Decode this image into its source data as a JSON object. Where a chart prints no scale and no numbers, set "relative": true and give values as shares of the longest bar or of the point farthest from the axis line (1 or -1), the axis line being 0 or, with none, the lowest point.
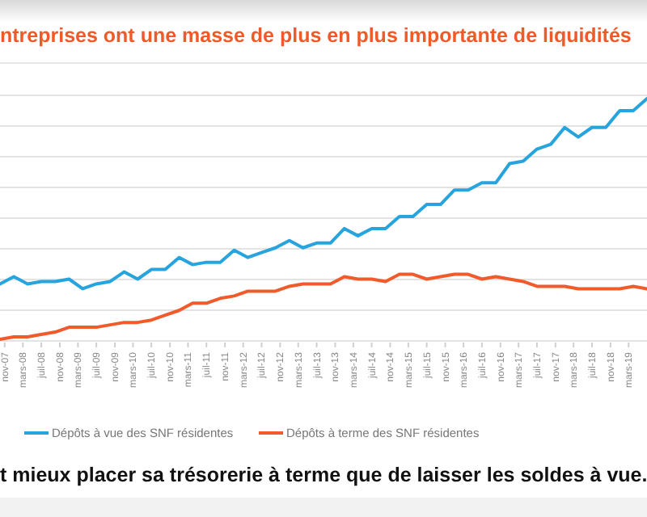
{
  "chart_data": {
    "type": "line",
    "title": "ntreprises ont une masse de plus en plus importante de liquidités",
    "relative": true,
    "grid": "y",
    "legend": "bottom",
    "marker": "none",
    "line_style": "solid",
    "x": [
      "2007-10",
      "2008-01",
      "2008-04",
      "2008-07",
      "2008-10",
      "2009-01",
      "2009-04",
      "2009-07",
      "2009-10",
      "2010-01",
      "2010-04",
      "2010-07",
      "2010-10",
      "2011-01",
      "2011-04",
      "2011-07",
      "2011-10",
      "2012-01",
      "2012-04",
      "2012-07",
      "2012-10",
      "2013-01",
      "2013-04",
      "2013-07",
      "2013-10",
      "2014-01",
      "2014-04",
      "2014-07",
      "2014-10",
      "2015-01",
      "2015-04",
      "2015-07",
      "2015-10",
      "2016-01",
      "2016-04",
      "2016-07",
      "2016-10",
      "2017-01",
      "2017-04",
      "2017-07",
      "2017-10",
      "2018-01",
      "2018-04",
      "2018-07",
      "2018-10",
      "2019-01",
      "2019-04",
      "2019-07"
    ],
    "xlim": [
      "2007-10",
      "2019-07"
    ],
    "xticks": [
      {
        "value": "2007-11",
        "label": "nov-07"
      },
      {
        "value": "2008-03",
        "label": "mars-08"
      },
      {
        "value": "2008-07",
        "label": "juil-08"
      },
      {
        "value": "2008-11",
        "label": "nov-08"
      },
      {
        "value": "2009-03",
        "label": "mars-09"
      },
      {
        "value": "2009-07",
        "label": "juil-09"
      },
      {
        "value": "2009-11",
        "label": "nov-09"
      },
      {
        "value": "2010-03",
        "label": "mars-10"
      },
      {
        "value": "2010-07",
        "label": "juil-10"
      },
      {
        "value": "2010-11",
        "label": "nov-10"
      },
      {
        "value": "2011-03",
        "label": "mars-11"
      },
      {
        "value": "2011-07",
        "label": "juil-11"
      },
      {
        "value": "2011-11",
        "label": "nov-11"
      },
      {
        "value": "2012-03",
        "label": "mars-12"
      },
      {
        "value": "2012-07",
        "label": "juil-12"
      },
      {
        "value": "2012-11",
        "label": "nov-12"
      },
      {
        "value": "2013-03",
        "label": "mars-13"
      },
      {
        "value": "2013-07",
        "label": "juil-13"
      },
      {
        "value": "2013-11",
        "label": "nov-13"
      },
      {
        "value": "2014-03",
        "label": "mars-14"
      },
      {
        "value": "2014-07",
        "label": "juil-14"
      },
      {
        "value": "2014-11",
        "label": "nov-14"
      },
      {
        "value": "2015-03",
        "label": "mars-15"
      },
      {
        "value": "2015-07",
        "label": "juil-15"
      },
      {
        "value": "2015-11",
        "label": "nov-15"
      },
      {
        "value": "2016-03",
        "label": "mars-16"
      },
      {
        "value": "2016-07",
        "label": "juil-16"
      },
      {
        "value": "2016-11",
        "label": "nov-16"
      },
      {
        "value": "2017-03",
        "label": "mars-17"
      },
      {
        "value": "2017-07",
        "label": "juil-17"
      },
      {
        "value": "2017-11",
        "label": "nov-17"
      },
      {
        "value": "2018-03",
        "label": "mars-18"
      },
      {
        "value": "2018-07",
        "label": "juil-18"
      },
      {
        "value": "2018-11",
        "label": "nov-18"
      },
      {
        "value": "2019-03",
        "label": "mars-19"
      }
    ],
    "series": [
      {
        "name": "Dépôts à vue des SNF résidentes",
        "color": "#27a4dd",
        "values": [
          0.23,
          0.26,
          0.23,
          0.24,
          0.24,
          0.25,
          0.21,
          0.23,
          0.24,
          0.28,
          0.25,
          0.29,
          0.29,
          0.34,
          0.31,
          0.32,
          0.32,
          0.37,
          0.34,
          0.36,
          0.38,
          0.41,
          0.38,
          0.4,
          0.4,
          0.46,
          0.43,
          0.46,
          0.46,
          0.51,
          0.51,
          0.56,
          0.56,
          0.62,
          0.62,
          0.65,
          0.65,
          0.73,
          0.74,
          0.79,
          0.81,
          0.88,
          0.84,
          0.88,
          0.88,
          0.95,
          0.95,
          1
        ]
      },
      {
        "name": "Dépôts à terme des SNF résidentes",
        "color": "#f15a2b",
        "values": [
          0,
          0.01,
          0.01,
          0.02,
          0.03,
          0.05,
          0.05,
          0.05,
          0.06,
          0.07,
          0.07,
          0.08,
          0.1,
          0.12,
          0.15,
          0.15,
          0.17,
          0.18,
          0.2,
          0.2,
          0.2,
          0.22,
          0.23,
          0.23,
          0.23,
          0.26,
          0.25,
          0.25,
          0.24,
          0.27,
          0.27,
          0.25,
          0.26,
          0.27,
          0.27,
          0.25,
          0.26,
          0.25,
          0.24,
          0.22,
          0.22,
          0.22,
          0.21,
          0.21,
          0.21,
          0.21,
          0.22,
          0.21
        ]
      }
    ],
    "annotations": [
      "t mieux placer sa trésorerie à terme que de laisser les soldes à vue."
    ]
  }
}
